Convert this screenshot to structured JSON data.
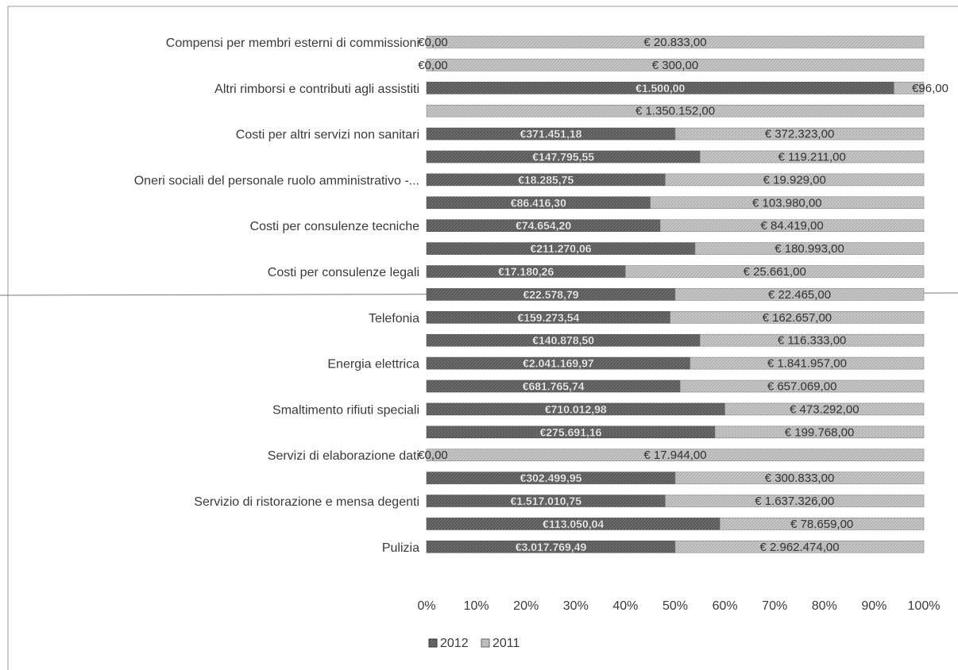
{
  "chart_data": {
    "type": "bar",
    "orientation": "horizontal",
    "stacked": "percent",
    "title": "",
    "xlabel": "",
    "ylabel": "",
    "xlim": [
      0,
      100
    ],
    "x_ticks": [
      "0%",
      "10%",
      "20%",
      "30%",
      "40%",
      "50%",
      "60%",
      "70%",
      "80%",
      "90%",
      "100%"
    ],
    "grid": false,
    "legend_position": "bottom",
    "colors": {
      "2012": "#6e6e6e",
      "2011": "#c8c8c8"
    },
    "categories_shown": [
      "Compensi per membri esterni di commissioni",
      "Altri rimborsi e contributi agli assistiti",
      "Costi per altri servizi non sanitari",
      "Oneri sociali del personale ruolo amministrativo -...",
      "Costi per consulenze tecniche",
      "Costi per consulenze legali",
      "Telefonia",
      "Energia elettrica",
      "Smaltimento rifiuti speciali",
      "Servizi di elaborazione dati",
      "Servizio di ristorazione e mensa degenti",
      "Pulizia"
    ],
    "series": [
      {
        "name": "2012"
      },
      {
        "name": "2011"
      }
    ],
    "bars": [
      {
        "label_2012": "€0,00",
        "label_2011": "€ 20.833,00",
        "share_2012": 0
      },
      {
        "label_2012": "€0,00",
        "label_2011": "€ 300,00",
        "share_2012": 0
      },
      {
        "label_2012": "€1.500,00",
        "label_2011": "€96,00",
        "share_2012": 94
      },
      {
        "label_2012": "",
        "label_2011": "€ 1.350.152,00",
        "share_2012": 0
      },
      {
        "label_2012": "€371.451,18",
        "label_2011": "€ 372.323,00",
        "share_2012": 50
      },
      {
        "label_2012": "€147.795,55",
        "label_2011": "€ 119.211,00",
        "share_2012": 55
      },
      {
        "label_2012": "€18.285,75",
        "label_2011": "€ 19.929,00",
        "share_2012": 48
      },
      {
        "label_2012": "€86.416,30",
        "label_2011": "€ 103.980,00",
        "share_2012": 45
      },
      {
        "label_2012": "€74.654,20",
        "label_2011": "€ 84.419,00",
        "share_2012": 47
      },
      {
        "label_2012": "€211.270,06",
        "label_2011": "€ 180.993,00",
        "share_2012": 54
      },
      {
        "label_2012": "€17.180,26",
        "label_2011": "€ 25.661,00",
        "share_2012": 40
      },
      {
        "label_2012": "€22.578,79",
        "label_2011": "€ 22.465,00",
        "share_2012": 50
      },
      {
        "label_2012": "€159.273,54",
        "label_2011": "€ 162.657,00",
        "share_2012": 49
      },
      {
        "label_2012": "€140.878,50",
        "label_2011": "€ 116.333,00",
        "share_2012": 55
      },
      {
        "label_2012": "€2.041.169,97",
        "label_2011": "€ 1.841.957,00",
        "share_2012": 53
      },
      {
        "label_2012": "€681.765,74",
        "label_2011": "€ 657.069,00",
        "share_2012": 51
      },
      {
        "label_2012": "€710.012,98",
        "label_2011": "€ 473.292,00",
        "share_2012": 60
      },
      {
        "label_2012": "€275.691,16",
        "label_2011": "€ 199.768,00",
        "share_2012": 58
      },
      {
        "label_2012": "€0,00",
        "label_2011": "€ 17.944,00",
        "share_2012": 0
      },
      {
        "label_2012": "€302.499,95",
        "label_2011": "€ 300.833,00",
        "share_2012": 50
      },
      {
        "label_2012": "€1.517.010,75",
        "label_2011": "€ 1.637.326,00",
        "share_2012": 48
      },
      {
        "label_2012": "€113.050,04",
        "label_2011": "€ 78.659,00",
        "share_2012": 59
      },
      {
        "label_2012": "€3.017.769,49",
        "label_2011": "€ 2.962.474,00",
        "share_2012": 50
      }
    ]
  }
}
